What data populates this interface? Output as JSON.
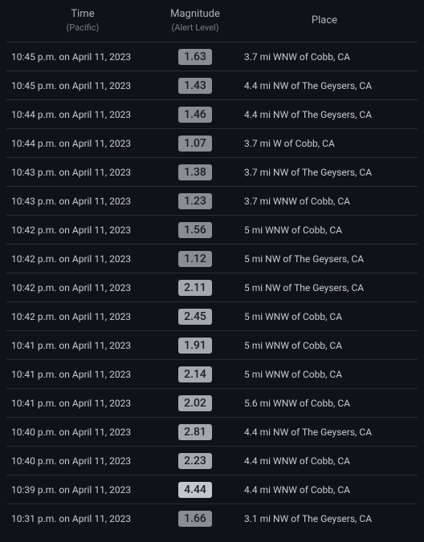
{
  "headers": {
    "time": "Time",
    "time_sub": "(Pacific)",
    "magnitude": "Magnitude",
    "magnitude_sub": "(Alert Level)",
    "place": "Place"
  },
  "badge_colors": {
    "low": "#8a8d94",
    "mid": "#a6a8af",
    "high": "#c5c7cd"
  },
  "rows": [
    {
      "time": "10:45 p.m. on April 11, 2023",
      "magnitude": "1.63",
      "place": "3.7 mi WNW of Cobb, CA",
      "level": "low"
    },
    {
      "time": "10:45 p.m. on April 11, 2023",
      "magnitude": "1.43",
      "place": "4.4 mi NW of The Geysers, CA",
      "level": "low"
    },
    {
      "time": "10:44 p.m. on April 11, 2023",
      "magnitude": "1.46",
      "place": "4.4 mi NW of The Geysers, CA",
      "level": "low"
    },
    {
      "time": "10:44 p.m. on April 11, 2023",
      "magnitude": "1.07",
      "place": "3.7 mi W of Cobb, CA",
      "level": "low"
    },
    {
      "time": "10:43 p.m. on April 11, 2023",
      "magnitude": "1.38",
      "place": "3.7 mi NW of The Geysers, CA",
      "level": "low"
    },
    {
      "time": "10:43 p.m. on April 11, 2023",
      "magnitude": "1.23",
      "place": "3.7 mi WNW of Cobb, CA",
      "level": "low"
    },
    {
      "time": "10:42 p.m. on April 11, 2023",
      "magnitude": "1.56",
      "place": "5 mi WNW of Cobb, CA",
      "level": "low"
    },
    {
      "time": "10:42 p.m. on April 11, 2023",
      "magnitude": "1.12",
      "place": "5 mi NW of The Geysers, CA",
      "level": "low"
    },
    {
      "time": "10:42 p.m. on April 11, 2023",
      "magnitude": "2.11",
      "place": "5 mi NW of The Geysers, CA",
      "level": "mid"
    },
    {
      "time": "10:42 p.m. on April 11, 2023",
      "magnitude": "2.45",
      "place": "5 mi WNW of Cobb, CA",
      "level": "mid"
    },
    {
      "time": "10:41 p.m. on April 11, 2023",
      "magnitude": "1.91",
      "place": "5 mi WNW of Cobb, CA",
      "level": "mid"
    },
    {
      "time": "10:41 p.m. on April 11, 2023",
      "magnitude": "2.14",
      "place": "5 mi WNW of Cobb, CA",
      "level": "mid"
    },
    {
      "time": "10:41 p.m. on April 11, 2023",
      "magnitude": "2.02",
      "place": "5.6 mi WNW of Cobb, CA",
      "level": "mid"
    },
    {
      "time": "10:40 p.m. on April 11, 2023",
      "magnitude": "2.81",
      "place": "4.4 mi NW of The Geysers, CA",
      "level": "mid"
    },
    {
      "time": "10:40 p.m. on April 11, 2023",
      "magnitude": "2.23",
      "place": "4.4 mi WNW of Cobb, CA",
      "level": "mid"
    },
    {
      "time": "10:39 p.m. on April 11, 2023",
      "magnitude": "4.44",
      "place": "4.4 mi WNW of Cobb, CA",
      "level": "high"
    },
    {
      "time": "10:31 p.m. on April 11, 2023",
      "magnitude": "1.66",
      "place": "3.1 mi NW of The Geysers, CA",
      "level": "low"
    }
  ]
}
